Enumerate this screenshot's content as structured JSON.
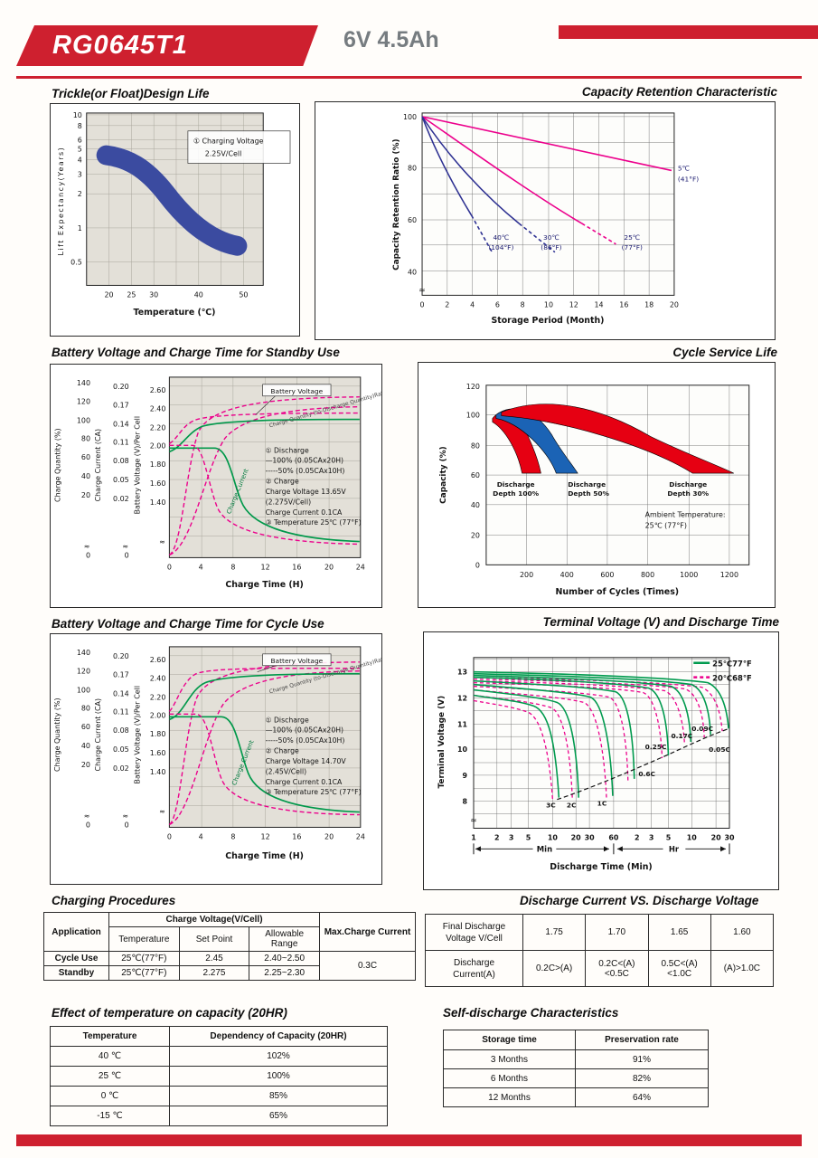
{
  "header": {
    "model": "RG0645T1",
    "spec": "6V  4.5Ah"
  },
  "chart_data": [
    {
      "type": "area",
      "title": "Trickle(or Float)Design Life",
      "xlabel": "Temperature (℃)",
      "ylabel": "Lift  Expectancy(Years)",
      "yscale": "log",
      "xticks_labels": [
        "20",
        "25",
        "30",
        "40",
        "50"
      ],
      "yticks_labels": [
        "10",
        "8",
        "6",
        "5",
        "4",
        "3",
        "2",
        "1",
        "0.5"
      ],
      "annotation": [
        "① Charging Voltage",
        "2.25V/Cell"
      ],
      "x": [
        20,
        25,
        30,
        35,
        40,
        45,
        50
      ],
      "band_upper_years": [
        5.8,
        5.4,
        4.4,
        3.0,
        2.0,
        1.5,
        1.3
      ],
      "band_lower_years": [
        3.8,
        3.4,
        2.7,
        1.8,
        1.2,
        0.9,
        0.8
      ]
    },
    {
      "type": "line",
      "title": "Capacity Retention  Characteristic",
      "xlabel": "Storage Period (Month)",
      "ylabel": "Capacity Retention Ratio (%)",
      "xticks_labels": [
        "0",
        "2",
        "4",
        "6",
        "8",
        "10",
        "12",
        "14",
        "16",
        "18",
        "20"
      ],
      "yticks_labels": [
        "100",
        "80",
        "60",
        "40"
      ],
      "axis_break": "≈",
      "series": [
        {
          "name": "5℃ (41°F)",
          "x": [
            0,
            10,
            20
          ],
          "y": [
            100,
            90,
            79
          ]
        },
        {
          "name": "25℃ (77°F)",
          "x": [
            0,
            8,
            16.5
          ],
          "y": [
            100,
            74,
            48
          ]
        },
        {
          "name": "30℃ (86°F)",
          "x": [
            0,
            6,
            10.5
          ],
          "y": [
            100,
            63,
            47
          ]
        },
        {
          "name": "40℃ (104°F)",
          "x": [
            0,
            3,
            5.5
          ],
          "y": [
            100,
            70,
            47
          ]
        }
      ],
      "curve_labels": [
        [
          "40℃",
          "(104°F)"
        ],
        [
          "30℃",
          "(86°F)"
        ],
        [
          "25℃",
          "(77°F)"
        ],
        [
          "5℃",
          "(41°F)"
        ]
      ]
    },
    {
      "type": "line",
      "title": "Battery Voltage and Charge Time for Standby Use",
      "xlabel": "Charge Time (H)",
      "y1label": "Charge Quantity (%)",
      "y2label": "Charge Current (CA)",
      "y3label": "Battery Voltage (V)/Per Cell",
      "xticks_labels": [
        "0",
        "4",
        "8",
        "12",
        "16",
        "20",
        "24"
      ],
      "y1ticks_labels": [
        "140",
        "120",
        "100",
        "80",
        "60",
        "40",
        "20"
      ],
      "y2ticks_labels": [
        "0.20",
        "0.17",
        "0.14",
        "0.11",
        "0.08",
        "0.05",
        "0.02"
      ],
      "y3ticks_labels": [
        "2.60",
        "2.40",
        "2.20",
        "2.00",
        "1.80",
        "1.60",
        "1.40"
      ],
      "y1zero": "0",
      "y2zero": "0",
      "axis_break": "≈",
      "curve_names": {
        "bv": "Battery Voltage",
        "cq": "Charge Quantity (to-Discharge Quantity)Ratio",
        "cc": "Charge Current"
      },
      "notes": [
        "① Discharge",
        "—100% (0.05CAx20H)",
        "-----50% (0.05CAx10H)",
        "② Charge",
        "Charge Voltage 13.65V",
        "(2.275V/Cell)",
        "Charge Current 0.1CA",
        "③ Temperature 25℃ (77°F)"
      ],
      "series": [
        {
          "name": "Battery Voltage (V/cell)",
          "x": [
            0,
            2,
            4,
            8,
            16,
            24
          ],
          "y": [
            1.95,
            2.1,
            2.25,
            2.27,
            2.275,
            2.275
          ]
        },
        {
          "name": "Charge Current (CA)",
          "x": [
            0,
            4,
            6,
            9,
            12,
            24
          ],
          "y": [
            0.1,
            0.1,
            0.08,
            0.03,
            0.012,
            0.005
          ]
        },
        {
          "name": "Charge Quantity (%)",
          "x": [
            0,
            4,
            8,
            12,
            16,
            24
          ],
          "y": [
            0,
            35,
            80,
            100,
            108,
            113
          ]
        }
      ]
    },
    {
      "type": "area",
      "title": "Cycle Service Life",
      "xlabel": "Number of Cycles (Times)",
      "ylabel": "Capacity (%)",
      "xticks_labels": [
        "200",
        "400",
        "600",
        "800",
        "1000",
        "1200"
      ],
      "yticks_labels": [
        "120",
        "100",
        "80",
        "60",
        "40",
        "20",
        "0"
      ],
      "series": [
        {
          "name": "Discharge Depth 100%",
          "cycles_range": [
            50,
            270
          ],
          "capacity_start": 102,
          "capacity_end": 60
        },
        {
          "name": "Discharge Depth 50%",
          "cycles_range": [
            50,
            450
          ],
          "capacity_start": 103,
          "capacity_end": 60
        },
        {
          "name": "Discharge Depth 30%",
          "cycles_range": [
            50,
            1230
          ],
          "capacity_start": 105,
          "capacity_end": 60
        }
      ],
      "band_labels": [
        [
          "Discharge",
          "Depth 100%"
        ],
        [
          "Discharge",
          "Depth 50%"
        ],
        [
          "Discharge",
          "Depth 30%"
        ]
      ],
      "ambient": [
        "Ambient Temperature:",
        "25℃ (77°F)"
      ]
    },
    {
      "type": "line",
      "title": "Battery Voltage and Charge Time for Cycle Use",
      "xlabel": "Charge Time (H)",
      "y1label": "Charge Quantity (%)",
      "y2label": "Charge Current (CA)",
      "y3label": "Battery Voltage (V)/Per Cell",
      "xticks_labels": [
        "0",
        "4",
        "8",
        "12",
        "16",
        "20",
        "24"
      ],
      "y1ticks_labels": [
        "140",
        "120",
        "100",
        "80",
        "60",
        "40",
        "20"
      ],
      "y2ticks_labels": [
        "0.20",
        "0.17",
        "0.14",
        "0.11",
        "0.08",
        "0.05",
        "0.02"
      ],
      "y3ticks_labels": [
        "2.60",
        "2.40",
        "2.20",
        "2.00",
        "1.80",
        "1.60",
        "1.40"
      ],
      "y1zero": "0",
      "y2zero": "0",
      "axis_break": "≈",
      "curve_names": {
        "bv": "Battery Voltage",
        "cq": "Charge Quantity (to-Discharge Quantity)Ratio",
        "cc": "Charge Current"
      },
      "notes": [
        "① Discharge",
        "—100% (0.05CAx20H)",
        "-----50% (0.05CAx10H)",
        "② Charge",
        "Charge Voltage 14.70V",
        "(2.45V/Cell)",
        "Charge Current 0.1CA",
        "③ Temperature 25℃ (77°F)"
      ],
      "series": [
        {
          "name": "Battery Voltage (V/cell)",
          "x": [
            0,
            2,
            4,
            8,
            16,
            24
          ],
          "y": [
            1.96,
            2.12,
            2.35,
            2.45,
            2.45,
            2.45
          ]
        },
        {
          "name": "Charge Current (CA)",
          "x": [
            0,
            4,
            8,
            10,
            14,
            24
          ],
          "y": [
            0.1,
            0.1,
            0.09,
            0.04,
            0.012,
            0.005
          ]
        },
        {
          "name": "Charge Quantity (%)",
          "x": [
            0,
            4,
            8,
            12,
            16,
            24
          ],
          "y": [
            0,
            38,
            85,
            105,
            112,
            116
          ]
        }
      ]
    },
    {
      "type": "line",
      "title": "Terminal Voltage (V) and Discharge Time",
      "xlabel": "Discharge Time (Min)",
      "ylabel": "Terminal Voltage (V)",
      "xscale": "log",
      "yticks_labels": [
        "13",
        "12",
        "11",
        "10",
        "9",
        "8"
      ],
      "xticks_min_labels": [
        "1",
        "2",
        "3",
        "5",
        "10",
        "20",
        "30",
        "60"
      ],
      "xticks_hr_labels": [
        "2",
        "3",
        "5",
        "10",
        "20",
        "30"
      ],
      "unit_min": "Min",
      "unit_hr": "Hr",
      "axis_break": "≈",
      "legend": [
        {
          "name": "25℃77°F",
          "color": "#009a4e",
          "style": "solid"
        },
        {
          "name": "20℃68°F",
          "color": "#ec008c",
          "style": "dashed"
        }
      ],
      "rate_labels": [
        "3C",
        "2C",
        "1C",
        "0.6C",
        "0.25C",
        "0.17C",
        "0.09C",
        "0.05C"
      ],
      "series": [
        {
          "rate": "3C",
          "end_min": 13,
          "start_v": 12.2,
          "end_v": 8.0
        },
        {
          "rate": "2C",
          "end_min": 22,
          "start_v": 12.4,
          "end_v": 8.0
        },
        {
          "rate": "1C",
          "end_min": 45,
          "start_v": 12.6,
          "end_v": 8.2
        },
        {
          "rate": "0.6C",
          "end_min": 85,
          "start_v": 12.7,
          "end_v": 9.1
        },
        {
          "rate": "0.25C",
          "end_min": 240,
          "start_v": 12.8,
          "end_v": 9.8
        },
        {
          "rate": "0.17C",
          "end_min": 390,
          "start_v": 12.85,
          "end_v": 10.3
        },
        {
          "rate": "0.09C",
          "end_min": 780,
          "start_v": 12.9,
          "end_v": 10.6
        },
        {
          "rate": "0.05C",
          "end_min": 1320,
          "start_v": 12.95,
          "end_v": 10.8
        }
      ]
    }
  ],
  "tables": {
    "charging": {
      "title": "Charging Procedures",
      "col_application": "Application",
      "col_charge_voltage": "Charge Voltage(V/Cell)",
      "col_temperature": "Temperature",
      "col_set_point": "Set Point",
      "col_allowable": "Allowable Range",
      "col_max_current": "Max.Charge Current",
      "rows": [
        {
          "application": "Cycle Use",
          "temperature": "25℃(77°F)",
          "set_point": "2.45",
          "allowable": "2.40~2.50"
        },
        {
          "application": "Standby",
          "temperature": "25℃(77°F)",
          "set_point": "2.275",
          "allowable": "2.25~2.30"
        }
      ],
      "max_current": "0.3C"
    },
    "discharge": {
      "title": "Discharge Current VS. Discharge Voltage",
      "row1_label": [
        "Final Discharge",
        "Voltage V/Cell"
      ],
      "row1": [
        "1.75",
        "1.70",
        "1.65",
        "1.60"
      ],
      "row2_label": [
        "Discharge",
        "Current(A)"
      ],
      "row2": [
        "0.2C>(A)",
        "0.2C<(A)<0.5C",
        "0.5C<(A)<1.0C",
        "(A)>1.0C"
      ]
    },
    "temp_capacity": {
      "title": "Effect of temperature on capacity (20HR)",
      "headers": [
        "Temperature",
        "Dependency of Capacity (20HR)"
      ],
      "rows": [
        [
          "40 ℃",
          "102%"
        ],
        [
          "25 ℃",
          "100%"
        ],
        [
          "0 ℃",
          "85%"
        ],
        [
          "-15 ℃",
          "65%"
        ]
      ]
    },
    "self_discharge": {
      "title": "Self-discharge Characteristics",
      "headers": [
        "Storage time",
        "Preservation rate"
      ],
      "rows": [
        [
          "3 Months",
          "91%"
        ],
        [
          "6 Months",
          "82%"
        ],
        [
          "12 Months",
          "64%"
        ]
      ]
    }
  }
}
